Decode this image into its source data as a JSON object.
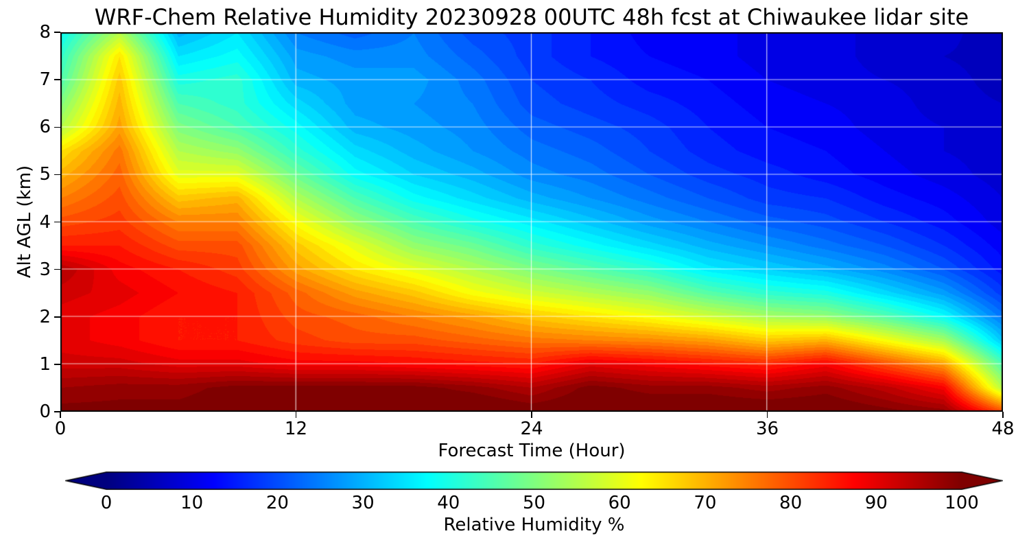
{
  "chart_data": {
    "type": "heatmap",
    "title": "WRF-Chem Relative Humidity 20230928 00UTC 48h fcst at Chiwaukee lidar site",
    "xlabel": "Forecast Time (Hour)",
    "ylabel": "Alt AGL (km)",
    "colorbar_label": "Relative Humidity %",
    "xlim": [
      0,
      48
    ],
    "ylim": [
      0,
      8
    ],
    "x_ticks": [
      0,
      12,
      24,
      36,
      48
    ],
    "y_ticks": [
      0,
      1,
      2,
      3,
      4,
      5,
      6,
      7,
      8
    ],
    "colorbar_ticks": [
      0,
      10,
      20,
      30,
      40,
      50,
      60,
      70,
      80,
      90,
      100
    ],
    "colorbar_range": [
      0,
      100
    ],
    "colormap": "jet",
    "colorbar_extend": "both",
    "grid": true,
    "legend_position": "none",
    "x_hours": [
      0,
      3,
      6,
      9,
      12,
      15,
      18,
      21,
      24,
      27,
      30,
      33,
      36,
      39,
      42,
      45,
      48
    ],
    "alt_km": [
      0,
      0.5,
      1,
      1.5,
      2,
      2.5,
      3,
      3.5,
      4,
      4.5,
      5,
      5.5,
      6,
      6.5,
      7,
      7.5,
      8
    ],
    "rh_values": [
      [
        100,
        100,
        100,
        101,
        101,
        102,
        102,
        103,
        101,
        102,
        102,
        102,
        102,
        102,
        100,
        98,
        80
      ],
      [
        97,
        98,
        98,
        100,
        100,
        100,
        100,
        98,
        95,
        100,
        98,
        98,
        96,
        98,
        94,
        88,
        55
      ],
      [
        92,
        92,
        90,
        90,
        88,
        88,
        87,
        86,
        85,
        90,
        88,
        86,
        84,
        88,
        80,
        72,
        45
      ],
      [
        90,
        88,
        85,
        85,
        82,
        80,
        80,
        78,
        76,
        75,
        74,
        72,
        68,
        70,
        62,
        54,
        32
      ],
      [
        90,
        88,
        85,
        85,
        80,
        78,
        75,
        72,
        68,
        65,
        62,
        58,
        54,
        52,
        46,
        38,
        24
      ],
      [
        92,
        90,
        87,
        85,
        78,
        72,
        68,
        62,
        58,
        55,
        52,
        46,
        42,
        40,
        34,
        28,
        18
      ],
      [
        95,
        88,
        85,
        82,
        72,
        65,
        60,
        55,
        50,
        46,
        42,
        36,
        33,
        30,
        26,
        21,
        14
      ],
      [
        85,
        85,
        80,
        80,
        68,
        60,
        52,
        48,
        42,
        38,
        34,
        30,
        27,
        24,
        21,
        17,
        12
      ],
      [
        80,
        82,
        75,
        75,
        62,
        52,
        45,
        40,
        36,
        32,
        28,
        25,
        22,
        20,
        17,
        14,
        10
      ],
      [
        75,
        80,
        68,
        70,
        55,
        45,
        38,
        34,
        30,
        27,
        24,
        21,
        18,
        17,
        14,
        12,
        9
      ],
      [
        70,
        78,
        60,
        60,
        48,
        38,
        33,
        30,
        26,
        24,
        21,
        18,
        16,
        14,
        12,
        10,
        8
      ],
      [
        65,
        76,
        55,
        52,
        42,
        34,
        30,
        27,
        24,
        22,
        19,
        16,
        14,
        13,
        11,
        9,
        8
      ],
      [
        55,
        72,
        50,
        45,
        38,
        30,
        28,
        26,
        22,
        20,
        18,
        15,
        13,
        12,
        10,
        9,
        7
      ],
      [
        50,
        70,
        45,
        42,
        34,
        28,
        27,
        25,
        20,
        18,
        16,
        14,
        12,
        11,
        10,
        8,
        7
      ],
      [
        45,
        68,
        40,
        42,
        30,
        28,
        28,
        24,
        19,
        17,
        14,
        13,
        11,
        10,
        9,
        8,
        6
      ],
      [
        42,
        65,
        35,
        38,
        28,
        26,
        26,
        22,
        18,
        15,
        13,
        12,
        10,
        10,
        8,
        7,
        6
      ],
      [
        38,
        55,
        30,
        35,
        25,
        22,
        25,
        20,
        18,
        15,
        12,
        12,
        10,
        10,
        8,
        8,
        5
      ]
    ]
  },
  "colors": {
    "background": "#ffffff",
    "axis": "#000000",
    "text": "#000000",
    "grid": "#ffffff",
    "jet_stops": [
      {
        "t": 0.0,
        "color": "#00007f"
      },
      {
        "t": 0.125,
        "color": "#0000ff"
      },
      {
        "t": 0.375,
        "color": "#00ffff"
      },
      {
        "t": 0.625,
        "color": "#ffff00"
      },
      {
        "t": 0.875,
        "color": "#ff0000"
      },
      {
        "t": 1.0,
        "color": "#7f0000"
      }
    ]
  }
}
